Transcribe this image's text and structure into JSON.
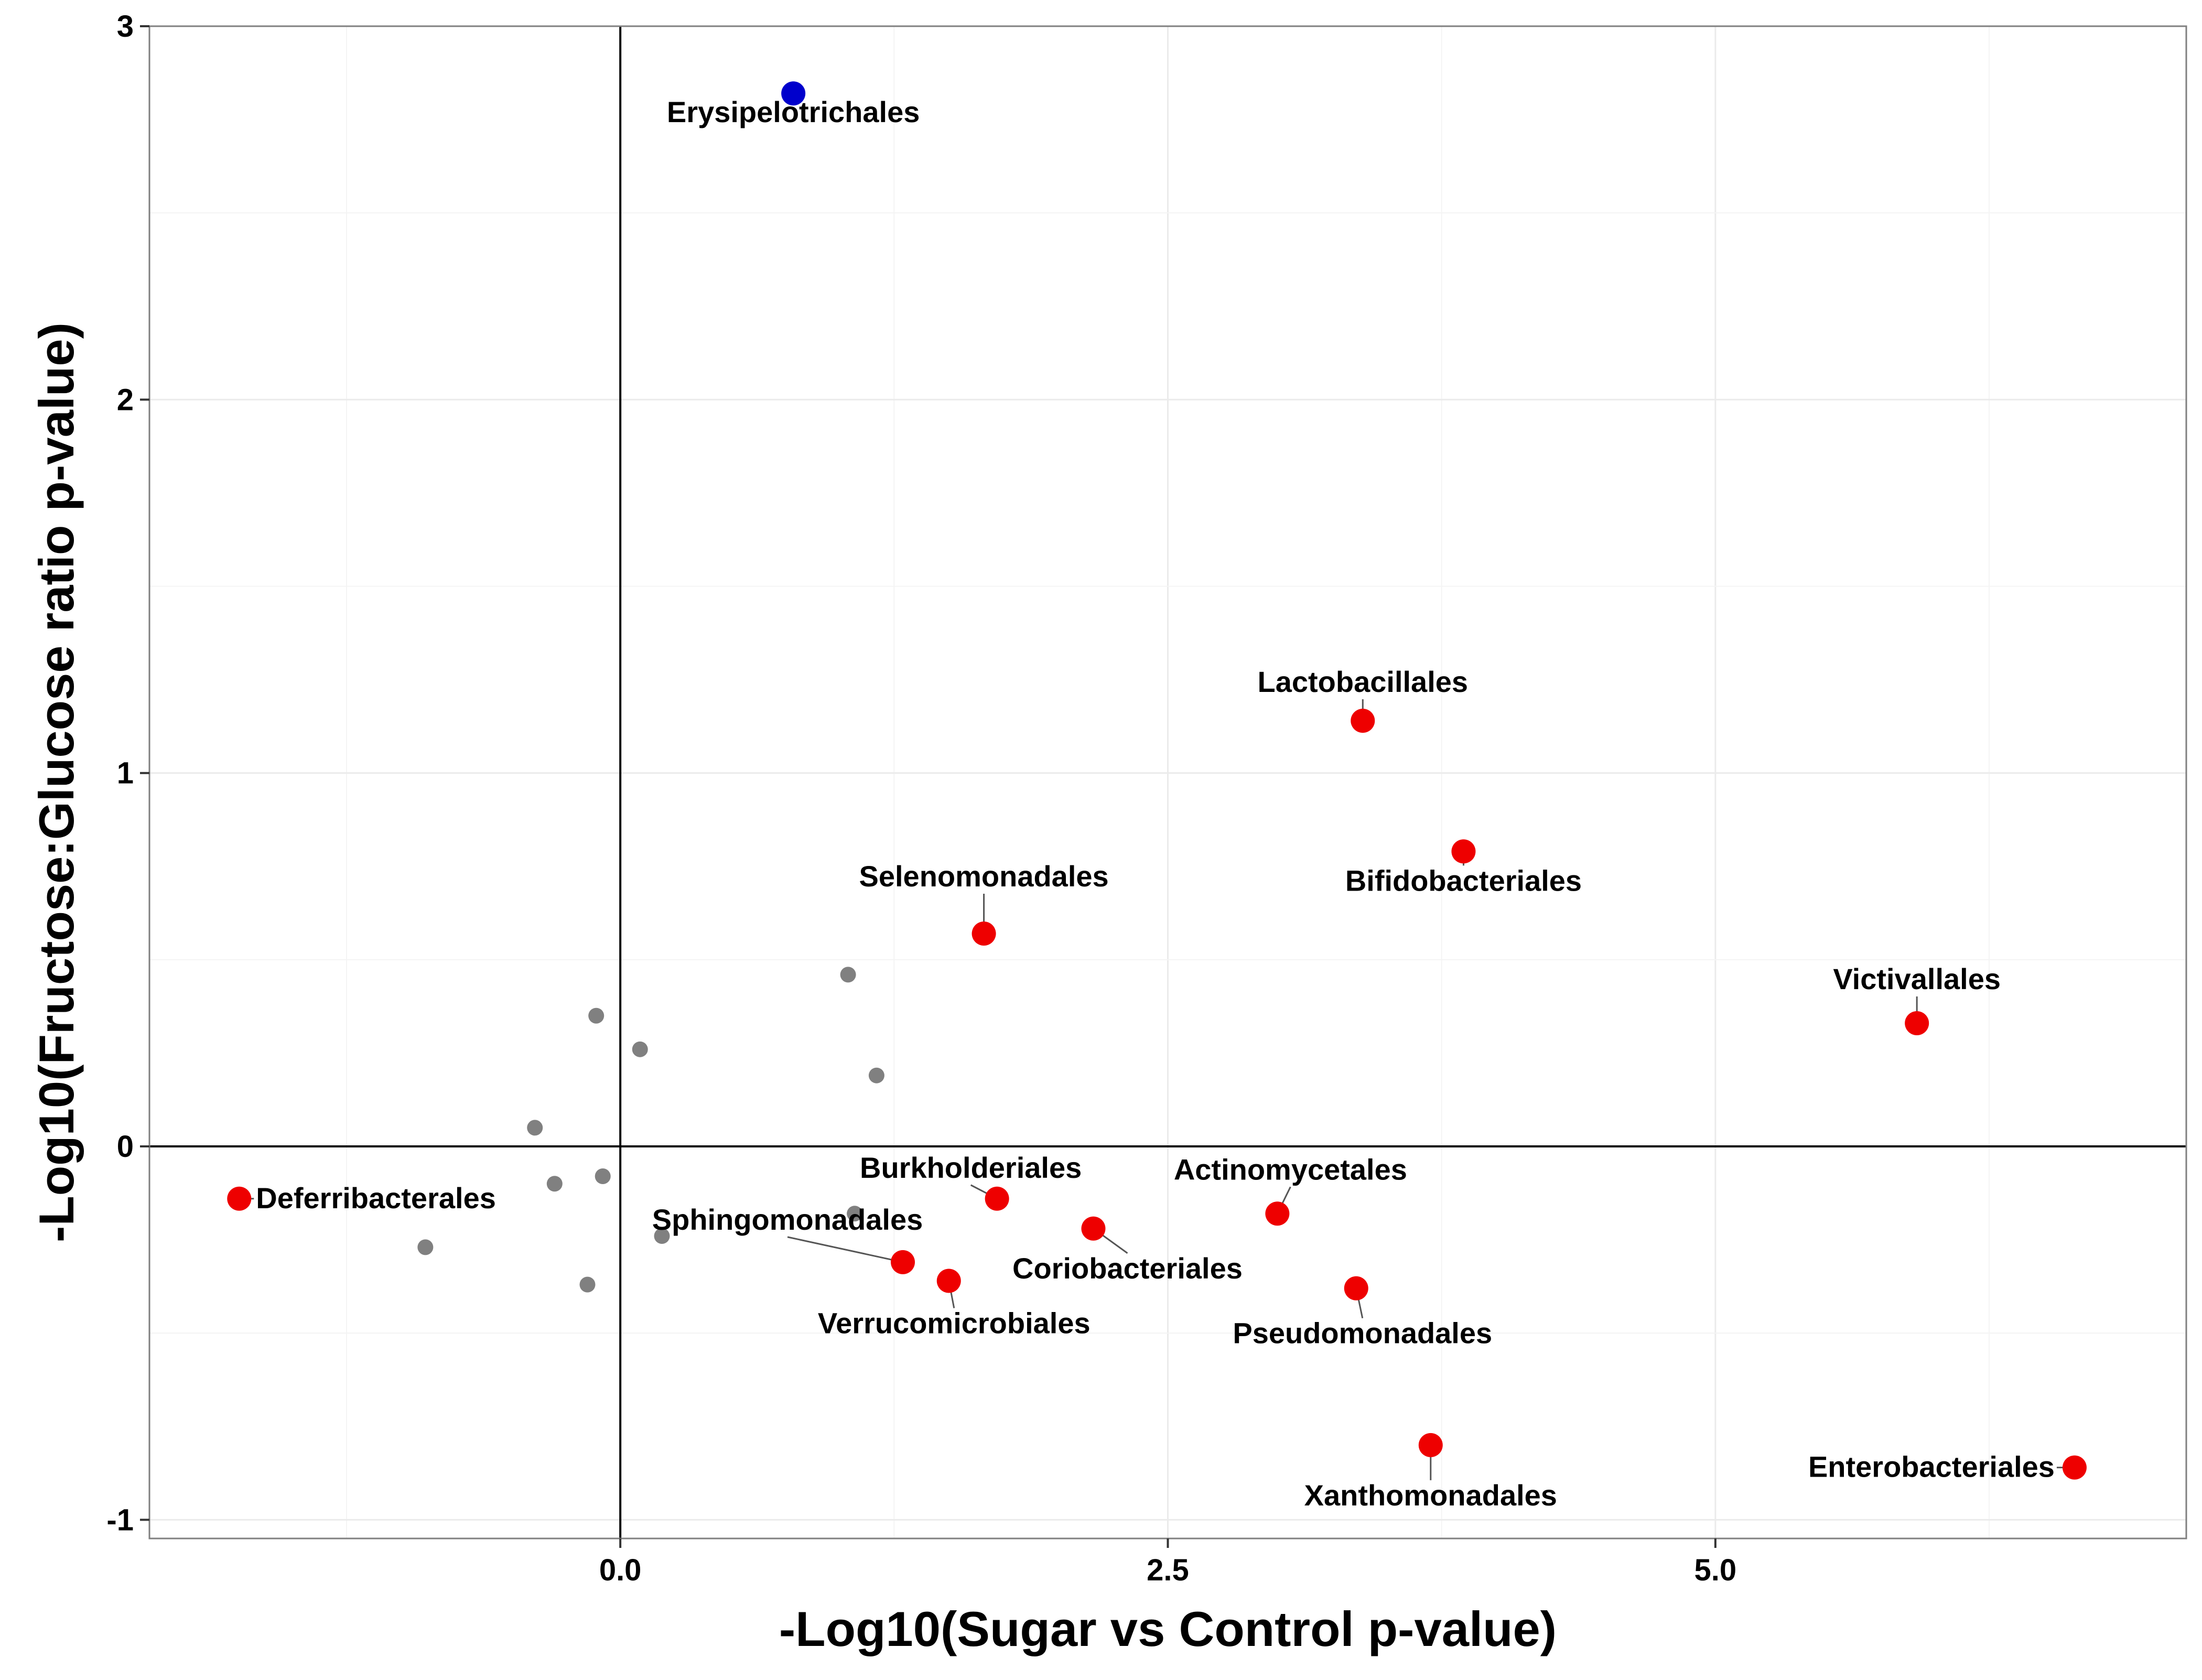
{
  "chart_data": {
    "type": "scatter",
    "xlabel": "-Log10(Sugar vs Control p-value)",
    "ylabel": "-Log10(Fructose:Glucose ratio p-value)",
    "xlim": [
      -2.15,
      7.15
    ],
    "ylim": [
      -1.05,
      3.0
    ],
    "xticks": [
      0.0,
      2.5,
      5.0
    ],
    "xtick_labels": [
      "0.0",
      "2.5",
      "5.0"
    ],
    "yticks": [
      -1,
      0,
      1,
      2,
      3
    ],
    "ytick_labels": [
      "-1",
      "0",
      "1",
      "2",
      "3"
    ],
    "grid": true,
    "colors": {
      "significant": "#ee0000",
      "highlight": "#0000cc",
      "nonsignificant": "#808080",
      "grid": "#ebebeb",
      "axis_line": "#000000",
      "panel_border": "#7f7f7f"
    },
    "reference_lines": {
      "x": 0,
      "y": 0
    },
    "points": [
      {
        "label": "Erysipelotrichales",
        "x": 0.79,
        "y": 2.82,
        "group": "highlight"
      },
      {
        "label": "Lactobacillales",
        "x": 3.39,
        "y": 1.14,
        "group": "significant"
      },
      {
        "label": "Bifidobacteriales",
        "x": 3.85,
        "y": 0.79,
        "group": "significant"
      },
      {
        "label": "Selenomonadales",
        "x": 1.66,
        "y": 0.57,
        "group": "significant"
      },
      {
        "label": "Victivallales",
        "x": 5.92,
        "y": 0.33,
        "group": "significant"
      },
      {
        "label": "Deferribacterales",
        "x": -1.74,
        "y": -0.14,
        "group": "significant"
      },
      {
        "label": "Burkholderiales",
        "x": 1.72,
        "y": -0.14,
        "group": "significant"
      },
      {
        "label": "Actinomycetales",
        "x": 3.0,
        "y": -0.18,
        "group": "significant"
      },
      {
        "label": "Coriobacteriales",
        "x": 2.16,
        "y": -0.22,
        "group": "significant"
      },
      {
        "label": "Sphingomonadales",
        "x": 1.29,
        "y": -0.31,
        "group": "significant"
      },
      {
        "label": "Verrucomicrobiales",
        "x": 1.5,
        "y": -0.36,
        "group": "significant"
      },
      {
        "label": "Pseudomonadales",
        "x": 3.36,
        "y": -0.38,
        "group": "significant"
      },
      {
        "label": "Xanthomonadales",
        "x": 3.7,
        "y": -0.8,
        "group": "significant"
      },
      {
        "label": "Enterobacteriales",
        "x": 6.64,
        "y": -0.86,
        "group": "significant"
      },
      {
        "x": 1.04,
        "y": 0.46,
        "group": "nonsignificant"
      },
      {
        "x": -0.11,
        "y": 0.35,
        "group": "nonsignificant"
      },
      {
        "x": 0.09,
        "y": 0.26,
        "group": "nonsignificant"
      },
      {
        "x": 1.17,
        "y": 0.19,
        "group": "nonsignificant"
      },
      {
        "x": -0.39,
        "y": 0.05,
        "group": "nonsignificant"
      },
      {
        "x": -0.3,
        "y": -0.1,
        "group": "nonsignificant"
      },
      {
        "x": -0.08,
        "y": -0.08,
        "group": "nonsignificant"
      },
      {
        "x": 1.07,
        "y": -0.18,
        "group": "nonsignificant"
      },
      {
        "x": 0.19,
        "y": -0.24,
        "group": "nonsignificant"
      },
      {
        "x": -0.89,
        "y": -0.27,
        "group": "nonsignificant"
      },
      {
        "x": -0.15,
        "y": -0.37,
        "group": "nonsignificant"
      }
    ]
  }
}
